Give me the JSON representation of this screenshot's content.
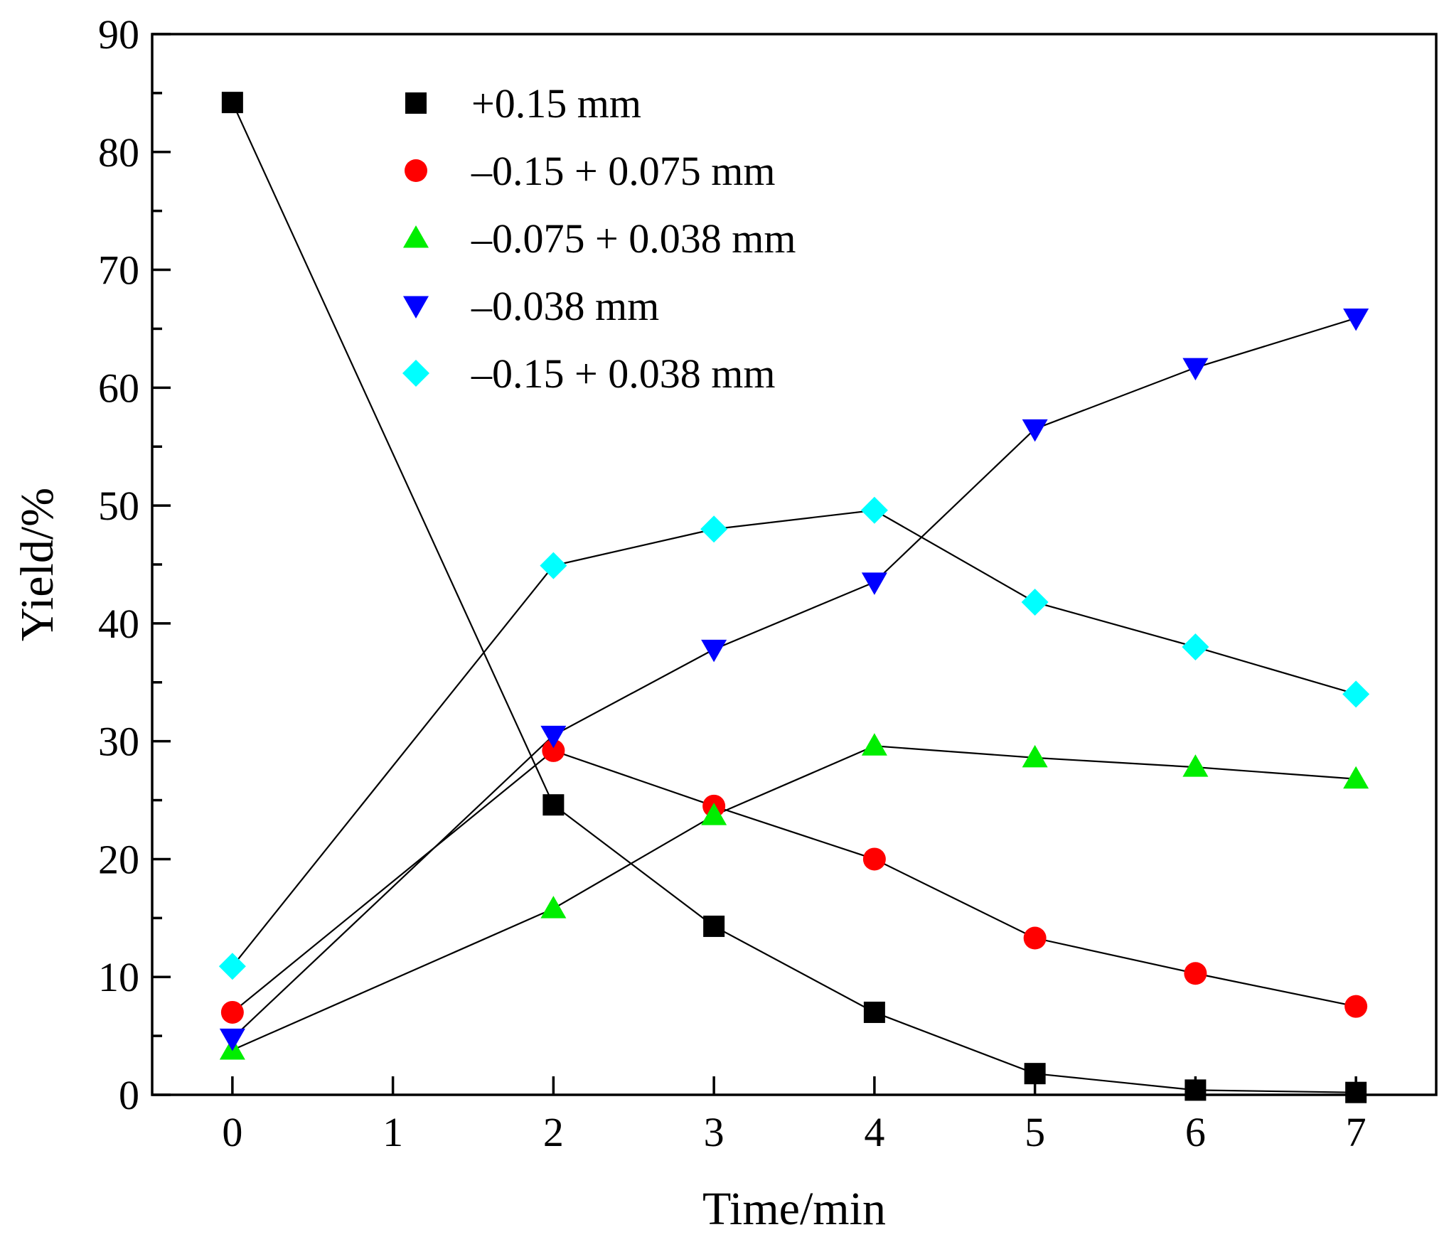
{
  "chart_data": {
    "type": "line",
    "title": "",
    "xlabel": "Time/min",
    "ylabel": "Yield/%",
    "xlim": [
      -0.5,
      7.5
    ],
    "ylim": [
      0,
      90
    ],
    "xticks": [
      0,
      1,
      2,
      3,
      4,
      5,
      6,
      7
    ],
    "yticks": [
      0,
      10,
      20,
      30,
      40,
      50,
      60,
      70,
      80,
      90
    ],
    "x": [
      0,
      2,
      3,
      4,
      5,
      6,
      7
    ],
    "legend_position": "top-left",
    "grid": false,
    "series": [
      {
        "name": "+0.15 mm",
        "marker": "square",
        "color": "#000000",
        "values": [
          84.2,
          24.6,
          14.3,
          7.0,
          1.8,
          0.4,
          0.2
        ]
      },
      {
        "name": "–0.15 + 0.075 mm",
        "marker": "circle",
        "color": "#ff0000",
        "values": [
          7.0,
          29.2,
          24.5,
          20.0,
          13.3,
          10.3,
          7.5
        ]
      },
      {
        "name": "–0.075 + 0.038 mm",
        "marker": "triangle-up",
        "color": "#00ee00",
        "values": [
          3.8,
          15.8,
          23.7,
          29.6,
          28.6,
          27.8,
          26.8
        ]
      },
      {
        "name": "–0.038 mm",
        "marker": "triangle-down",
        "color": "#0000ff",
        "values": [
          4.8,
          30.5,
          37.8,
          43.5,
          56.5,
          61.7,
          65.9
        ]
      },
      {
        "name": "–0.15 + 0.038 mm",
        "marker": "diamond",
        "color": "#00ffff",
        "values": [
          10.9,
          44.9,
          48.0,
          49.6,
          41.8,
          38.0,
          34.0
        ]
      }
    ]
  }
}
